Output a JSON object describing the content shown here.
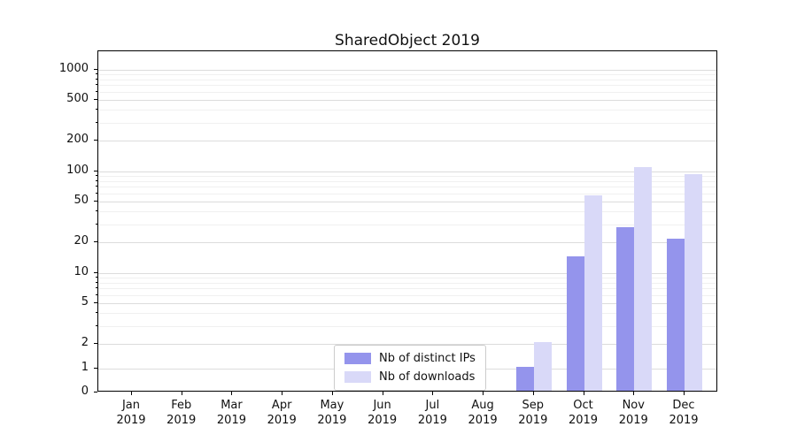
{
  "chart_data": {
    "type": "bar",
    "title": "SharedObject 2019",
    "categories": [
      {
        "month": "Jan",
        "year": "2019"
      },
      {
        "month": "Feb",
        "year": "2019"
      },
      {
        "month": "Mar",
        "year": "2019"
      },
      {
        "month": "Apr",
        "year": "2019"
      },
      {
        "month": "May",
        "year": "2019"
      },
      {
        "month": "Jun",
        "year": "2019"
      },
      {
        "month": "Jul",
        "year": "2019"
      },
      {
        "month": "Aug",
        "year": "2019"
      },
      {
        "month": "Sep",
        "year": "2019"
      },
      {
        "month": "Oct",
        "year": "2019"
      },
      {
        "month": "Nov",
        "year": "2019"
      },
      {
        "month": "Dec",
        "year": "2019"
      }
    ],
    "series": [
      {
        "name": "Nb of distinct IPs",
        "color": "#9494ec",
        "values": [
          0,
          0,
          0,
          0,
          0,
          0,
          0,
          0,
          1,
          14,
          27,
          21
        ]
      },
      {
        "name": "Nb of downloads",
        "color": "#d9d9f8",
        "values": [
          0,
          0,
          0,
          0,
          0,
          0,
          0,
          0,
          2,
          55,
          105,
          90
        ]
      }
    ],
    "y_axis": {
      "scale": "symlog",
      "ticks": [
        0,
        1,
        2,
        5,
        10,
        20,
        50,
        100,
        200,
        500,
        1000
      ],
      "minor_ticks": [
        3,
        4,
        6,
        7,
        8,
        9,
        30,
        40,
        60,
        70,
        80,
        90,
        300,
        400,
        600,
        700,
        800,
        900
      ],
      "range_top": 1500
    },
    "xlabel": "",
    "ylabel": "",
    "grid": true,
    "legend_position": "lower center inside axes"
  }
}
